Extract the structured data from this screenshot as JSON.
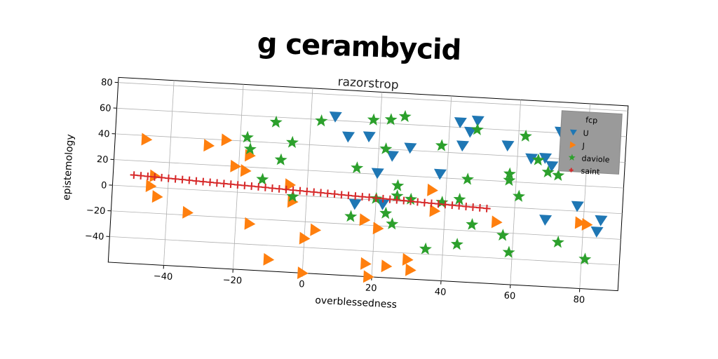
{
  "chart_data": {
    "type": "scatter",
    "title": "g cerambycid",
    "subtitle": "razorstrop",
    "xlabel": "overblessedness",
    "ylabel": "epistemology",
    "xlim": [
      -56,
      91
    ],
    "ylim": [
      -60,
      84
    ],
    "xticks": [
      -40,
      -20,
      0,
      20,
      40,
      60,
      80
    ],
    "yticks": [
      -40,
      -20,
      0,
      20,
      40,
      60,
      80
    ],
    "x_tick_labels": [
      "−40",
      "−20",
      "0",
      "20",
      "40",
      "60",
      "80"
    ],
    "y_tick_labels": [
      "−40",
      "−20",
      "0",
      "20",
      "40",
      "60",
      "80"
    ],
    "grid": true,
    "legend": {
      "title": "fcp",
      "placement": "top-right"
    },
    "series": [
      {
        "name": "U",
        "marker": "triangle-down",
        "color": "#1f77b4",
        "points": [
          [
            7,
            63
          ],
          [
            11,
            48
          ],
          [
            17,
            49
          ],
          [
            20,
            21
          ],
          [
            22,
            -3
          ],
          [
            24,
            35
          ],
          [
            29,
            42
          ],
          [
            38,
            23
          ],
          [
            43,
            64
          ],
          [
            44,
            46
          ],
          [
            46,
            57
          ],
          [
            48,
            66
          ],
          [
            57,
            48
          ],
          [
            64,
            39
          ],
          [
            68,
            40
          ],
          [
            70,
            34
          ],
          [
            72,
            61
          ],
          [
            69,
            -8
          ],
          [
            78,
            4
          ],
          [
            85,
            -6
          ],
          [
            84,
            -15
          ],
          [
            14,
            -4
          ]
        ]
      },
      {
        "name": "J",
        "marker": "triangle-right",
        "color": "#ff7f0e",
        "points": [
          [
            -47,
            37
          ],
          [
            -45,
            1
          ],
          [
            -43,
            -7
          ],
          [
            -34,
            -18
          ],
          [
            -29,
            35
          ],
          [
            -24,
            40
          ],
          [
            -21,
            20
          ],
          [
            -18,
            17
          ],
          [
            -17,
            29
          ],
          [
            -16,
            -24
          ],
          [
            -10,
            -51
          ],
          [
            -5,
            8
          ],
          [
            -4,
            -5
          ],
          [
            0,
            -33
          ],
          [
            0,
            -60
          ],
          [
            3,
            -26
          ],
          [
            18,
            -50
          ],
          [
            19,
            -60
          ],
          [
            21,
            -22
          ],
          [
            24,
            -51
          ],
          [
            30,
            -45
          ],
          [
            31,
            -53
          ],
          [
            36,
            10
          ],
          [
            37,
            -6
          ],
          [
            55,
            -12
          ],
          [
            79,
            -9
          ],
          [
            81,
            -10
          ],
          [
            17,
            -16
          ],
          [
            -44,
            9
          ]
        ]
      },
      {
        "name": "daviole",
        "marker": "star",
        "color": "#2ca02c",
        "points": [
          [
            -10,
            56
          ],
          [
            -18,
            43
          ],
          [
            -17,
            34
          ],
          [
            -5,
            41
          ],
          [
            -8,
            27
          ],
          [
            -13,
            11
          ],
          [
            -4,
            -1
          ],
          [
            3,
            59
          ],
          [
            14,
            24
          ],
          [
            18,
            62
          ],
          [
            23,
            63
          ],
          [
            27,
            66
          ],
          [
            22,
            40
          ],
          [
            26,
            12
          ],
          [
            26,
            4
          ],
          [
            30,
            2
          ],
          [
            20,
            1
          ],
          [
            13,
            -14
          ],
          [
            23,
            -10
          ],
          [
            25,
            -18
          ],
          [
            38,
            45
          ],
          [
            35,
            -36
          ],
          [
            39,
            1
          ],
          [
            44,
            4
          ],
          [
            46,
            20
          ],
          [
            44,
            -31
          ],
          [
            48,
            59
          ],
          [
            57,
            -22
          ],
          [
            61,
            9
          ],
          [
            59,
            -35
          ],
          [
            58,
            21
          ],
          [
            58,
            26
          ],
          [
            62,
            56
          ],
          [
            66,
            38
          ],
          [
            69,
            29
          ],
          [
            72,
            27
          ],
          [
            73,
            -25
          ],
          [
            79,
            40
          ],
          [
            81,
            -37
          ],
          [
            48,
            -15
          ]
        ]
      },
      {
        "name": "saint",
        "marker": "plus",
        "color": "#d62728",
        "points": [
          [
            -50,
            8.8
          ],
          [
            -48,
            8.6
          ],
          [
            -46,
            8.4
          ],
          [
            -44,
            8.2
          ],
          [
            -42,
            8
          ],
          [
            -40,
            7.8
          ],
          [
            -38,
            7.6
          ],
          [
            -36,
            7.4
          ],
          [
            -34,
            7.2
          ],
          [
            -32,
            6.9
          ],
          [
            -30,
            6.7
          ],
          [
            -28,
            6.5
          ],
          [
            -26,
            6.3
          ],
          [
            -24,
            6.1
          ],
          [
            -22,
            5.9
          ],
          [
            -20,
            5.7
          ],
          [
            -18,
            5.5
          ],
          [
            -16,
            5.3
          ],
          [
            -14,
            5.1
          ],
          [
            -12,
            4.9
          ],
          [
            -10,
            4.6
          ],
          [
            -8,
            4.4
          ],
          [
            -6,
            4.2
          ],
          [
            -4,
            4
          ],
          [
            -2,
            3.8
          ],
          [
            0,
            3.6
          ],
          [
            2,
            3.4
          ],
          [
            4,
            3.2
          ],
          [
            6,
            3
          ],
          [
            8,
            2.8
          ],
          [
            10,
            2.5
          ],
          [
            12,
            2.3
          ],
          [
            14,
            2.1
          ],
          [
            16,
            1.9
          ],
          [
            18,
            1.7
          ],
          [
            20,
            1.5
          ],
          [
            22,
            1.3
          ],
          [
            24,
            1.1
          ],
          [
            26,
            0.9
          ],
          [
            28,
            0.7
          ],
          [
            30,
            0.5
          ],
          [
            32,
            0.2
          ],
          [
            34,
            0
          ],
          [
            36,
            -0.2
          ],
          [
            38,
            -0.4
          ],
          [
            40,
            -0.6
          ],
          [
            42,
            -0.8
          ],
          [
            44,
            -1
          ],
          [
            46,
            -1.2
          ],
          [
            48,
            -1.4
          ],
          [
            50,
            -1.6
          ],
          [
            52,
            -1.8
          ]
        ]
      }
    ]
  }
}
